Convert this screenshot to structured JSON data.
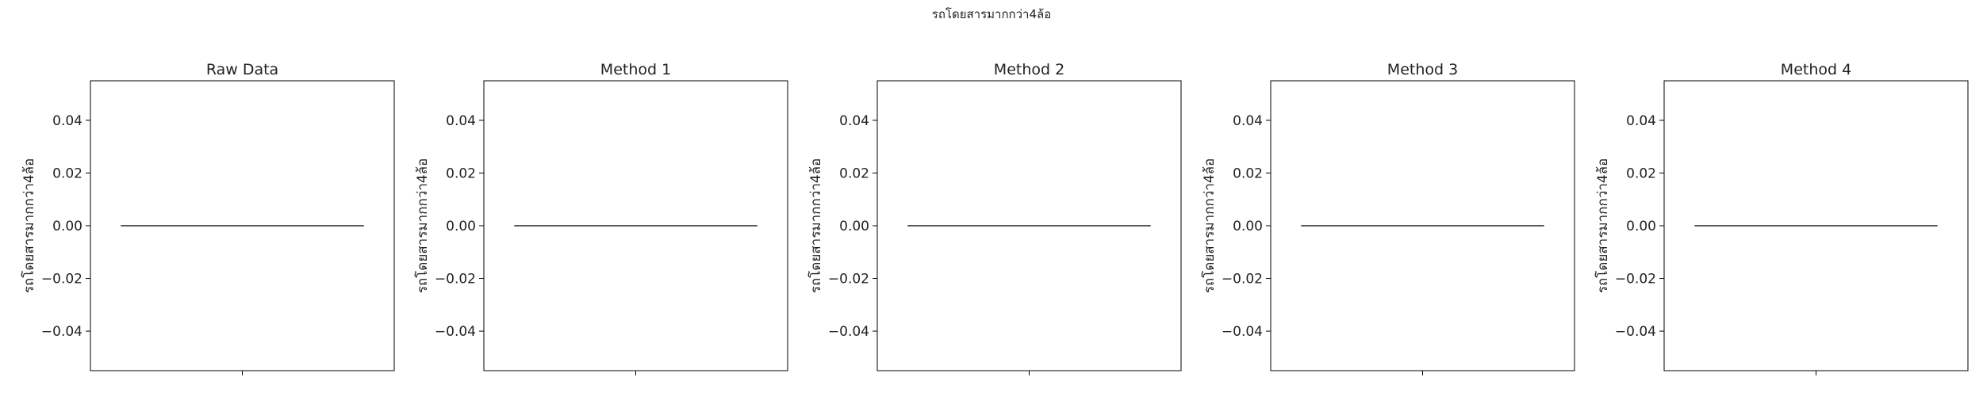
{
  "figure": {
    "title": "รถโดยสารมากกว่า4ล้อ"
  },
  "chart_data": [
    {
      "type": "line",
      "title": "Raw Data",
      "xlabel": "",
      "ylabel": "รถโดยสารมากกว่า4ล้อ",
      "ylim": [
        -0.055,
        0.055
      ],
      "yticks": [
        -0.04,
        -0.02,
        0.0,
        0.02,
        0.04
      ],
      "ytick_labels": [
        "−0.04",
        "−0.02",
        "0.00",
        "0.02",
        "0.04"
      ],
      "xlim": [
        0,
        1
      ],
      "xticks": [
        0.5
      ],
      "xtick_labels": [
        ""
      ],
      "series": [
        {
          "x": [
            0.1,
            0.9
          ],
          "values": [
            0,
            0
          ],
          "color": "#222222"
        }
      ],
      "grid": false
    },
    {
      "type": "line",
      "title": "Method 1",
      "xlabel": "",
      "ylabel": "รถโดยสารมากกว่า4ล้อ",
      "ylim": [
        -0.055,
        0.055
      ],
      "yticks": [
        -0.04,
        -0.02,
        0.0,
        0.02,
        0.04
      ],
      "ytick_labels": [
        "−0.04",
        "−0.02",
        "0.00",
        "0.02",
        "0.04"
      ],
      "xlim": [
        0,
        1
      ],
      "xticks": [
        0.5
      ],
      "xtick_labels": [
        ""
      ],
      "series": [
        {
          "x": [
            0.1,
            0.9
          ],
          "values": [
            0,
            0
          ],
          "color": "#222222"
        }
      ],
      "grid": false
    },
    {
      "type": "line",
      "title": "Method 2",
      "xlabel": "",
      "ylabel": "รถโดยสารมากกว่า4ล้อ",
      "ylim": [
        -0.055,
        0.055
      ],
      "yticks": [
        -0.04,
        -0.02,
        0.0,
        0.02,
        0.04
      ],
      "ytick_labels": [
        "−0.04",
        "−0.02",
        "0.00",
        "0.02",
        "0.04"
      ],
      "xlim": [
        0,
        1
      ],
      "xticks": [
        0.5
      ],
      "xtick_labels": [
        ""
      ],
      "series": [
        {
          "x": [
            0.1,
            0.9
          ],
          "values": [
            0,
            0
          ],
          "color": "#222222"
        }
      ],
      "grid": false
    },
    {
      "type": "line",
      "title": "Method 3",
      "xlabel": "",
      "ylabel": "รถโดยสารมากกว่า4ล้อ",
      "ylim": [
        -0.055,
        0.055
      ],
      "yticks": [
        -0.04,
        -0.02,
        0.0,
        0.02,
        0.04
      ],
      "ytick_labels": [
        "−0.04",
        "−0.02",
        "0.00",
        "0.02",
        "0.04"
      ],
      "xlim": [
        0,
        1
      ],
      "xticks": [
        0.5
      ],
      "xtick_labels": [
        ""
      ],
      "series": [
        {
          "x": [
            0.1,
            0.9
          ],
          "values": [
            0,
            0
          ],
          "color": "#222222"
        }
      ],
      "grid": false
    },
    {
      "type": "line",
      "title": "Method 4",
      "xlabel": "",
      "ylabel": "รถโดยสารมากกว่า4ล้อ",
      "ylim": [
        -0.055,
        0.055
      ],
      "yticks": [
        -0.04,
        -0.02,
        0.0,
        0.02,
        0.04
      ],
      "ytick_labels": [
        "−0.04",
        "−0.02",
        "0.00",
        "0.02",
        "0.04"
      ],
      "xlim": [
        0,
        1
      ],
      "xticks": [
        0.5
      ],
      "xtick_labels": [
        ""
      ],
      "series": [
        {
          "x": [
            0.1,
            0.9
          ],
          "values": [
            0,
            0
          ],
          "color": "#222222"
        }
      ],
      "grid": false
    }
  ]
}
